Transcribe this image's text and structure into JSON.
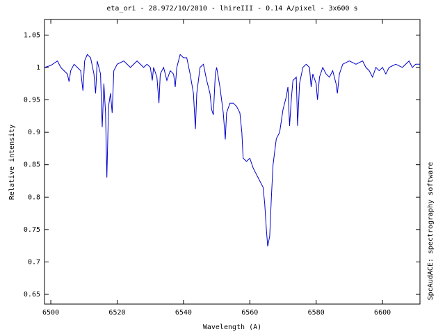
{
  "chart_data": {
    "type": "line",
    "title": "eta_ori - 28.972/10/2010 - lhireIII - 0.14 A/pixel - 3x600 s",
    "xlabel": "Wavelength (A)",
    "ylabel": "Relative intensity",
    "annotation": "SpcAudACE: spectrography software",
    "color": "#0000cc",
    "xlim": [
      6498.1,
      6611.3
    ],
    "ylim": [
      0.635,
      1.074
    ],
    "xticks": [
      6500,
      6520,
      6540,
      6560,
      6580,
      6600
    ],
    "yticks": [
      0.65,
      0.7,
      0.75,
      0.8,
      0.85,
      0.9,
      0.95,
      1,
      1.05
    ],
    "x": [
      6498.1,
      6500,
      6502,
      6503,
      6504,
      6505,
      6505.5,
      6506,
      6507,
      6508,
      6509,
      6509.7,
      6510.2,
      6511,
      6512,
      6513,
      6513.5,
      6514,
      6515,
      6515.5,
      6516,
      6516.5,
      6516.9,
      6517.4,
      6518,
      6518.5,
      6519,
      6520,
      6522,
      6524,
      6526,
      6528,
      6529,
      6530,
      6530.6,
      6531,
      6532,
      6532.6,
      6533,
      6534,
      6535,
      6536,
      6537,
      6537.5,
      6538,
      6539,
      6540,
      6541,
      6542,
      6543,
      6543.6,
      6544,
      6545,
      6546,
      6547,
      6548,
      6548.5,
      6549,
      6549.6,
      6550,
      6551,
      6552,
      6552.6,
      6553,
      6554,
      6555,
      6556,
      6557,
      6557.6,
      6558,
      6559,
      6560,
      6561,
      6562,
      6563,
      6564,
      6564.5,
      6565,
      6565.4,
      6566,
      6566.5,
      6567,
      6568,
      6569,
      6570,
      6571,
      6571.5,
      6572,
      6572.5,
      6573,
      6574,
      6574.4,
      6575,
      6576,
      6577,
      6578,
      6578.5,
      6579,
      6580,
      6580.4,
      6581,
      6582,
      6583,
      6584,
      6585,
      6586,
      6586.4,
      6587,
      6588,
      6590,
      6592,
      6594,
      6595,
      6596,
      6597,
      6598,
      6599,
      6600,
      6601,
      6602,
      6604,
      6606,
      6608,
      6609,
      6610,
      6611.3
    ],
    "values": [
      1.0,
      1.003,
      1.01,
      1.0,
      0.995,
      0.99,
      0.978,
      0.995,
      1.005,
      1.0,
      0.995,
      0.964,
      1.01,
      1.02,
      1.015,
      0.99,
      0.96,
      1.01,
      0.99,
      0.908,
      0.975,
      0.93,
      0.83,
      0.94,
      0.96,
      0.93,
      0.995,
      1.005,
      1.01,
      1.0,
      1.01,
      1.0,
      1.005,
      1.0,
      0.98,
      1.0,
      0.985,
      0.945,
      0.99,
      1.0,
      0.98,
      0.995,
      0.99,
      0.97,
      1.0,
      1.02,
      1.015,
      1.015,
      0.99,
      0.96,
      0.905,
      0.96,
      1.0,
      1.005,
      0.98,
      0.96,
      0.935,
      0.927,
      0.99,
      1.0,
      0.97,
      0.93,
      0.889,
      0.93,
      0.945,
      0.945,
      0.94,
      0.93,
      0.9,
      0.86,
      0.855,
      0.86,
      0.845,
      0.835,
      0.825,
      0.815,
      0.79,
      0.75,
      0.724,
      0.74,
      0.8,
      0.85,
      0.89,
      0.9,
      0.935,
      0.955,
      0.97,
      0.91,
      0.95,
      0.98,
      0.985,
      0.91,
      0.975,
      1.0,
      1.005,
      1.0,
      0.97,
      0.99,
      0.975,
      0.95,
      0.985,
      1.0,
      0.99,
      0.985,
      0.995,
      0.975,
      0.96,
      0.99,
      1.005,
      1.01,
      1.005,
      1.01,
      1.0,
      0.995,
      0.985,
      1.0,
      0.995,
      1.0,
      0.99,
      1.0,
      1.005,
      1.0,
      1.01,
      1.0,
      1.005,
      1.005
    ]
  }
}
